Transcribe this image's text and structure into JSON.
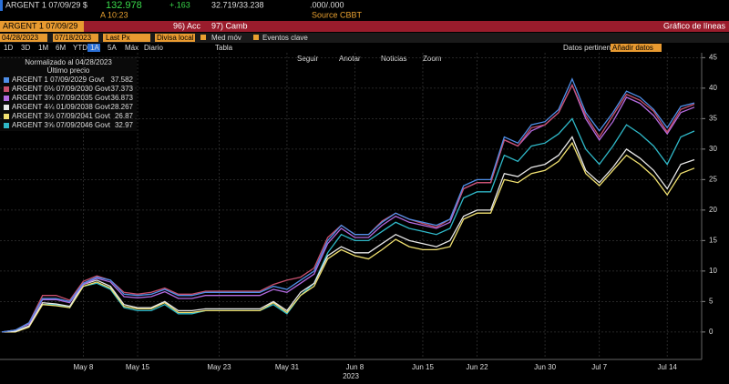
{
  "header": {
    "ticker": "ARGENT 1 07/09/29 $",
    "price": "132.978",
    "change": "+.163",
    "bid_ask": "32.719/33.238",
    "spread": ".000/.000",
    "time": "A 10:23",
    "source": "Source CBBT"
  },
  "menu": {
    "security": "ARGENT 1 07/09/29",
    "actions": "96) Acc",
    "change_security": "97) Camb",
    "view": "Gráfico de líneas"
  },
  "settings": {
    "start": "04/28/2023",
    "end": "07/18/2023",
    "field": "Last Px",
    "currency": "Divisa local",
    "moving_avg": "Med móv",
    "events": "Eventos clave",
    "relevant": "Datos pertinent",
    "add": "Añadir datos"
  },
  "periods": {
    "items": [
      "1D",
      "3D",
      "1M",
      "6M",
      "YTD",
      "1A",
      "5A",
      "Máx"
    ],
    "frequency": "Diario",
    "table": "Tabla"
  },
  "tools": [
    "Seguir",
    "Anotar",
    "Noticias",
    "Zoom"
  ],
  "chart_data": {
    "type": "line",
    "legend_title": "Normalizado al 04/28/2023",
    "legend_subtitle": "Último precio",
    "xlabel": "2023",
    "categories": [
      null,
      null,
      null,
      null,
      null,
      null,
      "May 8",
      null,
      null,
      null,
      "May 15",
      null,
      null,
      null,
      null,
      null,
      "May 23",
      null,
      null,
      null,
      null,
      "May 31",
      null,
      null,
      null,
      null,
      "Jun 8",
      null,
      null,
      null,
      null,
      "Jun 15",
      null,
      null,
      null,
      "Jun 22",
      null,
      null,
      null,
      null,
      "Jun 30",
      null,
      null,
      null,
      "Jul 7",
      null,
      null,
      null,
      null,
      "Jul 14",
      null,
      null
    ],
    "ylim": [
      -4.5,
      45.8
    ],
    "yticks": [
      0,
      5,
      10,
      15,
      20,
      25,
      30,
      35,
      40,
      45
    ],
    "grid": true,
    "series": [
      {
        "name": "ARGENT 1 07/09/2029 Govt",
        "color": "#4f8fe8",
        "values": [
          0,
          0.3,
          1.5,
          5.5,
          5.5,
          5,
          8,
          9,
          8.5,
          6.2,
          6,
          6.2,
          7,
          6,
          6,
          6.5,
          6.5,
          6.5,
          6.5,
          6.5,
          7.5,
          7,
          8.5,
          10,
          15,
          17.5,
          16,
          16,
          18,
          19.5,
          18.5,
          18,
          17.5,
          18.5,
          24,
          25,
          25,
          32,
          31,
          34,
          34.5,
          36.5,
          41.5,
          36,
          33,
          36,
          39.5,
          38.5,
          36.5,
          33.5,
          37,
          37.582
        ]
      },
      {
        "name": "ARGENT 0⅛ 07/09/2030 Govt",
        "color": "#c8506e",
        "values": [
          0,
          0.3,
          1.5,
          6,
          6,
          5.2,
          8.3,
          9.2,
          8.5,
          6.5,
          6.2,
          6.5,
          7.2,
          6.2,
          6.2,
          6.7,
          6.7,
          6.7,
          6.7,
          6.7,
          7.8,
          8.5,
          9,
          10.5,
          15.5,
          17.5,
          16,
          16,
          18.2,
          19.5,
          18.5,
          17.8,
          17.2,
          18.5,
          23.5,
          24.5,
          24.5,
          31.5,
          30.5,
          33.5,
          34,
          36,
          40.5,
          35.5,
          32,
          35.5,
          39,
          38,
          36.2,
          32.8,
          36.5,
          37.373
        ]
      },
      {
        "name": "ARGENT 3⅝ 07/09/2035 Govt",
        "color": "#b46be0",
        "values": [
          0,
          0.3,
          1.3,
          5.3,
          5.3,
          4.8,
          7.8,
          8.8,
          8.2,
          5.8,
          5.6,
          5.8,
          6.6,
          5.5,
          5.5,
          6,
          6,
          6,
          6,
          6,
          7,
          6.5,
          8,
          9.5,
          14.5,
          17,
          15.5,
          15.5,
          17.5,
          19,
          18,
          17.5,
          17,
          18,
          23.5,
          24.5,
          24.5,
          31.5,
          30.5,
          33,
          34,
          36,
          40.5,
          35,
          31.5,
          34.5,
          38.5,
          37.5,
          35.5,
          32.5,
          36,
          36.873
        ]
      },
      {
        "name": "ARGENT 4¼ 01/09/2038 Govt",
        "color": "#e8e8e8",
        "values": [
          0,
          0.1,
          1,
          4.8,
          4.6,
          4.2,
          7.8,
          8.5,
          7.5,
          4.5,
          4,
          4,
          5,
          3.5,
          3.5,
          3.8,
          3.8,
          3.8,
          3.8,
          3.8,
          5,
          3.5,
          6.5,
          8,
          12.5,
          14,
          13,
          13,
          14.5,
          16,
          15,
          14.5,
          14,
          15,
          19,
          20,
          20,
          26,
          25.5,
          27,
          27.5,
          29,
          32,
          26.5,
          24.5,
          27,
          30,
          28.5,
          26.5,
          23.5,
          27.5,
          28.267
        ]
      },
      {
        "name": "ARGENT 3½ 07/09/2041 Govt",
        "color": "#f0e070",
        "values": [
          0,
          0,
          0.8,
          4.5,
          4.3,
          4,
          7.5,
          8.2,
          7.2,
          4.2,
          3.8,
          3.8,
          4.8,
          3.2,
          3.2,
          3.5,
          3.5,
          3.5,
          3.5,
          3.5,
          4.8,
          3.2,
          6,
          7.5,
          12,
          13.5,
          12.5,
          12,
          13.5,
          15.2,
          14,
          13.5,
          13.5,
          14,
          18.5,
          19.5,
          19.5,
          25,
          24.5,
          26,
          26.5,
          28,
          31,
          26,
          24,
          26.5,
          29,
          27.5,
          25.5,
          22.5,
          26,
          26.87
        ]
      },
      {
        "name": "ARGENT 3⅝ 07/09/2046 Govt",
        "color": "#2fb8c8",
        "values": [
          0,
          0.2,
          1,
          4.5,
          4.5,
          4,
          7.5,
          8,
          7,
          4,
          3.5,
          3.5,
          4.5,
          3,
          3,
          3.5,
          3.5,
          3.5,
          3.5,
          3.5,
          4.5,
          3,
          6,
          8,
          13,
          16,
          15,
          15,
          16.5,
          18,
          17,
          16.5,
          16,
          17,
          22,
          23,
          23,
          29,
          28,
          30.5,
          31,
          32.5,
          35,
          30,
          27.5,
          30.5,
          34,
          32.5,
          30.5,
          27.5,
          32,
          32.97
        ]
      }
    ]
  }
}
